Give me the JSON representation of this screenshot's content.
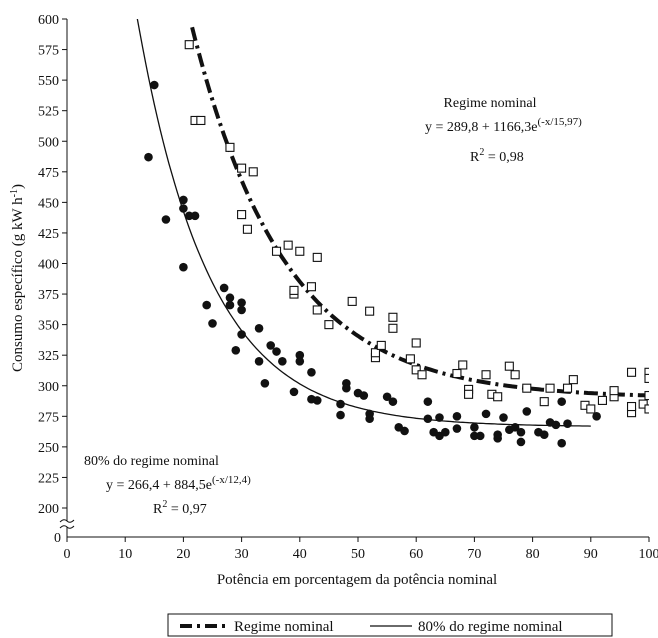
{
  "chart_data": {
    "type": "scatter",
    "xlabel": "Potência em porcentagem da potência nominal",
    "ylabel": "Consumo específico (g kW h-1)",
    "ylabel_main": "Consumo específico (g kW h",
    "ylabel_sup": "-1",
    "ylabel_close": ")",
    "xlim": [
      0,
      100
    ],
    "ylim": [
      200,
      600
    ],
    "x_ticks": [
      0,
      10,
      20,
      30,
      40,
      50,
      60,
      70,
      80,
      90,
      100
    ],
    "y_ticks": [
      200,
      225,
      250,
      275,
      300,
      325,
      350,
      375,
      400,
      425,
      450,
      475,
      500,
      525,
      550,
      575,
      600
    ],
    "y_zero_label": "0",
    "axis_break": true,
    "grid": false,
    "legend_position": "bottom",
    "series": [
      {
        "name": "Regime nominal",
        "marker": "open-square",
        "line_style": "dash-dot",
        "fit": {
          "a": 289.8,
          "b": 1166.3,
          "c": 15.97,
          "x_range": [
            21.5,
            100
          ]
        },
        "points": [
          [
            21,
            579
          ],
          [
            22,
            517
          ],
          [
            23,
            517
          ],
          [
            28,
            495
          ],
          [
            30,
            478
          ],
          [
            30,
            440
          ],
          [
            31,
            428
          ],
          [
            32,
            475
          ],
          [
            36,
            410
          ],
          [
            38,
            415
          ],
          [
            39,
            375
          ],
          [
            39,
            378
          ],
          [
            40,
            410
          ],
          [
            42,
            381
          ],
          [
            43,
            405
          ],
          [
            43,
            362
          ],
          [
            45,
            350
          ],
          [
            49,
            369
          ],
          [
            52,
            361
          ],
          [
            53,
            323
          ],
          [
            53,
            327
          ],
          [
            54,
            333
          ],
          [
            56,
            356
          ],
          [
            56,
            347
          ],
          [
            59,
            322
          ],
          [
            60,
            335
          ],
          [
            60,
            313
          ],
          [
            61,
            309
          ],
          [
            67,
            310
          ],
          [
            68,
            317
          ],
          [
            69,
            297
          ],
          [
            69,
            293
          ],
          [
            72,
            309
          ],
          [
            73,
            293
          ],
          [
            74,
            291
          ],
          [
            76,
            316
          ],
          [
            77,
            309
          ],
          [
            79,
            298
          ],
          [
            82,
            287
          ],
          [
            83,
            298
          ],
          [
            86,
            298
          ],
          [
            87,
            305
          ],
          [
            89,
            284
          ],
          [
            90,
            281
          ],
          [
            92,
            288
          ],
          [
            94,
            291
          ],
          [
            94,
            296
          ],
          [
            97,
            311
          ],
          [
            97,
            278
          ],
          [
            97,
            283
          ],
          [
            99,
            285
          ],
          [
            100,
            311
          ],
          [
            100,
            306
          ],
          [
            100,
            292
          ],
          [
            100,
            281
          ]
        ]
      },
      {
        "name": "80% do regime nominal",
        "marker": "filled-circle",
        "line_style": "solid",
        "fit": {
          "a": 266.4,
          "b": 884.5,
          "c": 12.4,
          "x_range": [
            12,
            90
          ]
        },
        "points": [
          [
            14,
            487
          ],
          [
            15,
            546
          ],
          [
            17,
            436
          ],
          [
            20,
            452
          ],
          [
            20,
            445
          ],
          [
            20,
            397
          ],
          [
            21,
            439
          ],
          [
            22,
            439
          ],
          [
            24,
            366
          ],
          [
            25,
            351
          ],
          [
            27,
            380
          ],
          [
            28,
            372
          ],
          [
            28,
            366
          ],
          [
            29,
            329
          ],
          [
            30,
            368
          ],
          [
            30,
            362
          ],
          [
            30,
            342
          ],
          [
            33,
            347
          ],
          [
            33,
            320
          ],
          [
            34,
            302
          ],
          [
            35,
            333
          ],
          [
            36,
            328
          ],
          [
            37,
            320
          ],
          [
            39,
            295
          ],
          [
            40,
            325
          ],
          [
            40,
            320
          ],
          [
            42,
            311
          ],
          [
            42,
            289
          ],
          [
            43,
            288
          ],
          [
            47,
            285
          ],
          [
            47,
            276
          ],
          [
            48,
            302
          ],
          [
            48,
            298
          ],
          [
            50,
            294
          ],
          [
            51,
            292
          ],
          [
            52,
            277
          ],
          [
            52,
            273
          ],
          [
            55,
            291
          ],
          [
            56,
            287
          ],
          [
            57,
            266
          ],
          [
            58,
            263
          ],
          [
            62,
            287
          ],
          [
            62,
            273
          ],
          [
            63,
            262
          ],
          [
            64,
            274
          ],
          [
            64,
            259
          ],
          [
            65,
            262
          ],
          [
            67,
            275
          ],
          [
            67,
            265
          ],
          [
            70,
            266
          ],
          [
            70,
            259
          ],
          [
            71,
            259
          ],
          [
            72,
            277
          ],
          [
            74,
            257
          ],
          [
            74,
            260
          ],
          [
            75,
            274
          ],
          [
            76,
            264
          ],
          [
            77,
            266
          ],
          [
            78,
            254
          ],
          [
            78,
            262
          ],
          [
            79,
            279
          ],
          [
            81,
            262
          ],
          [
            82,
            260
          ],
          [
            83,
            270
          ],
          [
            84,
            268
          ],
          [
            85,
            253
          ],
          [
            85,
            287
          ],
          [
            86,
            269
          ],
          [
            91,
            275
          ]
        ]
      }
    ],
    "annotations": {
      "nominal_title": "Regime nominal",
      "nominal_eq_base": "y = 289,8 + 1166,3e",
      "nominal_eq_exp": "(-x/15,97)",
      "nominal_r2_base": "R",
      "nominal_r2_sup": "2",
      "nominal_r2_val": " = 0,98",
      "eighty_title": "80% do regime nominal",
      "eighty_eq_base": "y = 266,4 + 884,5e",
      "eighty_eq_exp": "(-x/12,4)",
      "eighty_r2_base": "R",
      "eighty_r2_sup": "2",
      "eighty_r2_val": " = 0,97"
    }
  }
}
